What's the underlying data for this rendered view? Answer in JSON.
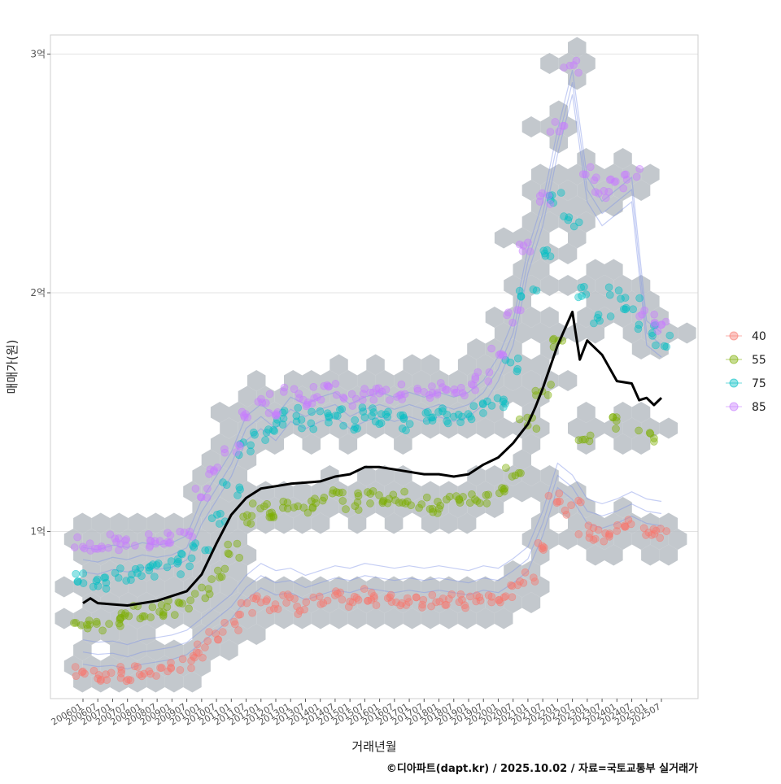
{
  "chart_data": {
    "type": "scatter",
    "title": "",
    "xlabel": "거래년월",
    "ylabel": "매매가(원)",
    "y_unit": "원",
    "ylim": [
      30000000,
      308000000
    ],
    "y_ticks": [
      {
        "value": 100000000,
        "label": "1억"
      },
      {
        "value": 200000000,
        "label": "2억"
      },
      {
        "value": 300000000,
        "label": "3억"
      }
    ],
    "x_tick_labels": [
      "200601",
      "200607",
      "200701",
      "200707",
      "200801",
      "200807",
      "200901",
      "200907",
      "201001",
      "201007",
      "201101",
      "201107",
      "201201",
      "201207",
      "201301",
      "201307",
      "201401",
      "201407",
      "201501",
      "201507",
      "201601",
      "201607",
      "201701",
      "201707",
      "201801",
      "201807",
      "201901",
      "201907",
      "202001",
      "202007",
      "202101",
      "202107",
      "202201",
      "202207",
      "202301",
      "202307",
      "202401",
      "202407",
      "202501",
      "202507"
    ],
    "legend": {
      "position": "right",
      "items": [
        {
          "label": "40",
          "color": "#F8766D"
        },
        {
          "label": "55",
          "color": "#7CAE00"
        },
        {
          "label": "75",
          "color": "#00BFC4"
        },
        {
          "label": "85",
          "color": "#C77CFF"
        }
      ]
    },
    "series": [
      {
        "name": "40",
        "color": "#F8766D",
        "note": "area group scatter (approx. trend by year)",
        "points": [
          [
            2006.0,
            41000000
          ],
          [
            2006.5,
            40000000
          ],
          [
            2007.0,
            40500000
          ],
          [
            2007.5,
            39000000
          ],
          [
            2008.0,
            41000000
          ],
          [
            2008.5,
            42000000
          ],
          [
            2009.0,
            43000000
          ],
          [
            2009.5,
            45000000
          ],
          [
            2010.0,
            50000000
          ],
          [
            2010.5,
            55000000
          ],
          [
            2011.0,
            60000000
          ],
          [
            2011.5,
            68000000
          ],
          [
            2012.0,
            73000000
          ],
          [
            2012.5,
            70000000
          ],
          [
            2013.0,
            71000000
          ],
          [
            2013.5,
            68000000
          ],
          [
            2014.0,
            70000000
          ],
          [
            2014.5,
            72000000
          ],
          [
            2015.0,
            71000000
          ],
          [
            2015.5,
            73000000
          ],
          [
            2016.0,
            72000000
          ],
          [
            2016.5,
            71000000
          ],
          [
            2017.0,
            72000000
          ],
          [
            2017.5,
            71000000
          ],
          [
            2018.0,
            72000000
          ],
          [
            2018.5,
            71000000
          ],
          [
            2019.0,
            70000000
          ],
          [
            2019.5,
            72000000
          ],
          [
            2020.0,
            71000000
          ],
          [
            2020.5,
            75000000
          ],
          [
            2021.0,
            80000000
          ],
          [
            2021.5,
            95000000
          ],
          [
            2022.0,
            115000000
          ],
          [
            2022.5,
            110000000
          ],
          [
            2023.0,
            100000000
          ],
          [
            2023.5,
            98000000
          ],
          [
            2024.0,
            100000000
          ],
          [
            2024.5,
            103000000
          ],
          [
            2025.0,
            100000000
          ],
          [
            2025.5,
            99000000
          ]
        ]
      },
      {
        "name": "55",
        "color": "#7CAE00",
        "note": "approx. trend by year",
        "points": [
          [
            2006.0,
            62000000
          ],
          [
            2006.5,
            61000000
          ],
          [
            2007.0,
            62000000
          ],
          [
            2007.5,
            64000000
          ],
          [
            2008.0,
            66000000
          ],
          [
            2008.5,
            67000000
          ],
          [
            2009.0,
            68000000
          ],
          [
            2009.5,
            70000000
          ],
          [
            2010.0,
            75000000
          ],
          [
            2010.5,
            82000000
          ],
          [
            2011.0,
            92000000
          ],
          [
            2011.5,
            105000000
          ],
          [
            2012.0,
            110000000
          ],
          [
            2012.5,
            108000000
          ],
          [
            2013.0,
            112000000
          ],
          [
            2013.5,
            110000000
          ],
          [
            2014.0,
            112000000
          ],
          [
            2014.5,
            115000000
          ],
          [
            2015.0,
            112000000
          ],
          [
            2015.5,
            114000000
          ],
          [
            2016.0,
            115000000
          ],
          [
            2016.5,
            113000000
          ],
          [
            2017.0,
            114000000
          ],
          [
            2017.5,
            112000000
          ],
          [
            2018.0,
            110000000
          ],
          [
            2018.5,
            112000000
          ],
          [
            2019.0,
            113000000
          ],
          [
            2019.5,
            114000000
          ],
          [
            2020.0,
            118000000
          ],
          [
            2020.5,
            125000000
          ],
          [
            2021.0,
            145000000
          ],
          [
            2021.5,
            160000000
          ],
          [
            2022.0,
            180000000
          ],
          [
            2023.0,
            140000000
          ],
          [
            2024.0,
            145000000
          ],
          [
            2025.0,
            140000000
          ]
        ]
      },
      {
        "name": "75",
        "color": "#00BFC4",
        "note": "approx. trend by year",
        "points": [
          [
            2006.0,
            80000000
          ],
          [
            2006.5,
            79000000
          ],
          [
            2007.0,
            80000000
          ],
          [
            2007.5,
            82000000
          ],
          [
            2008.0,
            83000000
          ],
          [
            2008.5,
            84000000
          ],
          [
            2009.0,
            85000000
          ],
          [
            2009.5,
            88000000
          ],
          [
            2010.0,
            95000000
          ],
          [
            2010.5,
            105000000
          ],
          [
            2011.0,
            118000000
          ],
          [
            2011.5,
            135000000
          ],
          [
            2012.0,
            140000000
          ],
          [
            2012.5,
            145000000
          ],
          [
            2013.0,
            150000000
          ],
          [
            2013.5,
            145000000
          ],
          [
            2014.0,
            148000000
          ],
          [
            2014.5,
            150000000
          ],
          [
            2015.0,
            145000000
          ],
          [
            2015.5,
            150000000
          ],
          [
            2016.0,
            148000000
          ],
          [
            2016.5,
            150000000
          ],
          [
            2017.0,
            145000000
          ],
          [
            2017.5,
            148000000
          ],
          [
            2018.0,
            150000000
          ],
          [
            2018.5,
            148000000
          ],
          [
            2019.0,
            150000000
          ],
          [
            2019.5,
            152000000
          ],
          [
            2020.0,
            155000000
          ],
          [
            2020.5,
            170000000
          ],
          [
            2021.0,
            200000000
          ],
          [
            2021.5,
            215000000
          ],
          [
            2022.0,
            240000000
          ],
          [
            2022.5,
            230000000
          ],
          [
            2023.0,
            200000000
          ],
          [
            2023.5,
            190000000
          ],
          [
            2024.0,
            200000000
          ],
          [
            2024.5,
            195000000
          ],
          [
            2025.0,
            185000000
          ],
          [
            2025.5,
            180000000
          ]
        ]
      },
      {
        "name": "85",
        "color": "#C77CFF",
        "note": "approx. trend by year",
        "points": [
          [
            2006.0,
            95000000
          ],
          [
            2006.5,
            94000000
          ],
          [
            2007.0,
            96000000
          ],
          [
            2007.5,
            95000000
          ],
          [
            2008.0,
            97000000
          ],
          [
            2008.5,
            96000000
          ],
          [
            2009.0,
            97000000
          ],
          [
            2009.5,
            100000000
          ],
          [
            2010.0,
            115000000
          ],
          [
            2010.5,
            125000000
          ],
          [
            2011.0,
            135000000
          ],
          [
            2011.5,
            150000000
          ],
          [
            2012.0,
            155000000
          ],
          [
            2012.5,
            150000000
          ],
          [
            2013.0,
            158000000
          ],
          [
            2013.5,
            155000000
          ],
          [
            2014.0,
            158000000
          ],
          [
            2014.5,
            160000000
          ],
          [
            2015.0,
            155000000
          ],
          [
            2015.5,
            158000000
          ],
          [
            2016.0,
            160000000
          ],
          [
            2016.5,
            158000000
          ],
          [
            2017.0,
            160000000
          ],
          [
            2017.5,
            158000000
          ],
          [
            2018.0,
            160000000
          ],
          [
            2018.5,
            158000000
          ],
          [
            2019.0,
            160000000
          ],
          [
            2019.5,
            165000000
          ],
          [
            2020.0,
            175000000
          ],
          [
            2020.5,
            190000000
          ],
          [
            2021.0,
            220000000
          ],
          [
            2021.5,
            240000000
          ],
          [
            2022.0,
            270000000
          ],
          [
            2022.5,
            295000000
          ],
          [
            2023.0,
            250000000
          ],
          [
            2023.5,
            240000000
          ],
          [
            2024.0,
            245000000
          ],
          [
            2024.5,
            250000000
          ],
          [
            2025.0,
            190000000
          ],
          [
            2025.5,
            185000000
          ]
        ]
      }
    ],
    "trend_line": {
      "name": "median",
      "color": "#000000",
      "points": [
        [
          2006.0,
          70000000
        ],
        [
          2006.25,
          72000000
        ],
        [
          2006.5,
          70000000
        ],
        [
          2007.0,
          69500000
        ],
        [
          2007.5,
          69000000
        ],
        [
          2008.0,
          70000000
        ],
        [
          2008.5,
          71000000
        ],
        [
          2009.0,
          73000000
        ],
        [
          2009.5,
          75000000
        ],
        [
          2010.0,
          82000000
        ],
        [
          2010.5,
          95000000
        ],
        [
          2011.0,
          107000000
        ],
        [
          2011.5,
          114000000
        ],
        [
          2012.0,
          118000000
        ],
        [
          2012.5,
          119000000
        ],
        [
          2013.0,
          120000000
        ],
        [
          2013.5,
          120500000
        ],
        [
          2014.0,
          121000000
        ],
        [
          2014.5,
          123000000
        ],
        [
          2015.0,
          124000000
        ],
        [
          2015.5,
          127000000
        ],
        [
          2016.0,
          127000000
        ],
        [
          2016.5,
          126000000
        ],
        [
          2017.0,
          125000000
        ],
        [
          2017.5,
          124000000
        ],
        [
          2018.0,
          124000000
        ],
        [
          2018.5,
          123000000
        ],
        [
          2019.0,
          124000000
        ],
        [
          2019.5,
          128000000
        ],
        [
          2020.0,
          131000000
        ],
        [
          2020.5,
          137000000
        ],
        [
          2021.0,
          145000000
        ],
        [
          2021.25,
          152000000
        ],
        [
          2021.5,
          160000000
        ],
        [
          2022.0,
          178000000
        ],
        [
          2022.5,
          192000000
        ],
        [
          2022.75,
          172000000
        ],
        [
          2023.0,
          180000000
        ],
        [
          2023.5,
          174000000
        ],
        [
          2024.0,
          163000000
        ],
        [
          2024.5,
          162000000
        ],
        [
          2024.75,
          155000000
        ],
        [
          2025.0,
          156000000
        ],
        [
          2025.25,
          153000000
        ],
        [
          2025.5,
          156000000
        ]
      ]
    },
    "density_contours": "2D density contour lines (light blue) over hexbin count cells (gray)"
  },
  "caption": "©디아파트(dapt.kr) / 2025.10.02 / 자료=국토교통부 실거래가"
}
